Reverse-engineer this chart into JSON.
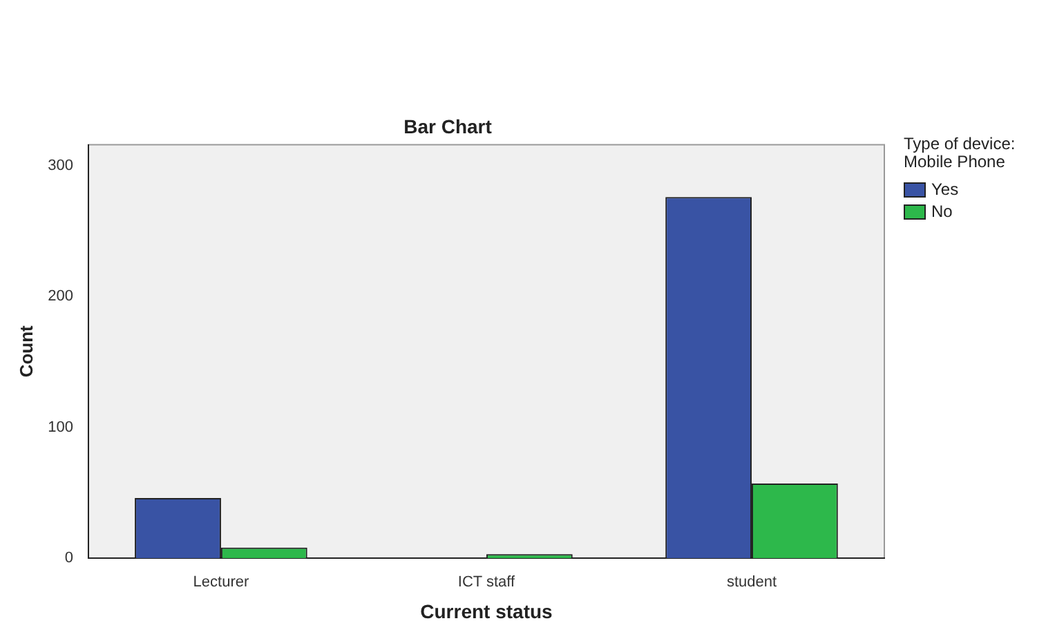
{
  "chart_data": {
    "type": "bar",
    "title": "Bar Chart",
    "xlabel": "Current status",
    "ylabel": "Count",
    "legend_title": "Type of device: Mobile Phone",
    "categories": [
      "Lecturer",
      "ICT staff",
      "student"
    ],
    "series": [
      {
        "name": "Yes",
        "color": "#3953a4",
        "values": [
          46,
          null,
          276
        ]
      },
      {
        "name": "No",
        "color": "#2db84b",
        "values": [
          8,
          3,
          57
        ]
      }
    ],
    "ylim": [
      0,
      316
    ],
    "yticks": [
      0,
      100,
      200,
      300
    ],
    "grid": false,
    "legend": "top right"
  }
}
